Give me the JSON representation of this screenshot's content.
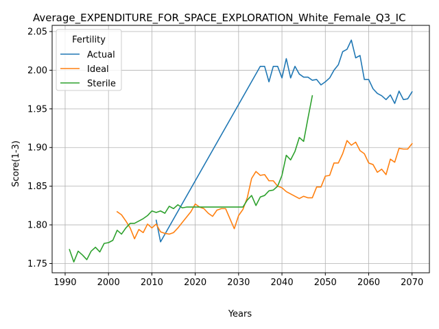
{
  "chart_data": {
    "type": "line",
    "title": "Average_EXPENDITURE_FOR_SPACE_EXPLORATION_White_Female_Q3_IC",
    "xlabel": "Years",
    "ylabel": "Score(1-3)",
    "xlim": [
      1987,
      2074
    ],
    "ylim": [
      1.738,
      2.058
    ],
    "xticks": [
      1990,
      2000,
      2010,
      2020,
      2030,
      2040,
      2050,
      2060,
      2070
    ],
    "yticks": [
      1.75,
      1.8,
      1.85,
      1.9,
      1.95,
      2.0,
      2.05
    ],
    "xtick_labels": [
      "1990",
      "2000",
      "2010",
      "2020",
      "2030",
      "2040",
      "2050",
      "2060",
      "2070"
    ],
    "ytick_labels": [
      "1.75",
      "1.80",
      "1.85",
      "1.90",
      "1.95",
      "2.00",
      "2.05"
    ],
    "grid": true,
    "legend": {
      "title": "Fertility",
      "placement": "upper-left"
    },
    "series": [
      {
        "name": "Actual",
        "color": "#1f77b4",
        "points": [
          [
            2011,
            1.806
          ],
          [
            2012,
            1.778
          ],
          [
            2035,
            2.005
          ],
          [
            2036,
            2.005
          ],
          [
            2037,
            1.985
          ],
          [
            2038,
            2.005
          ],
          [
            2039,
            2.005
          ],
          [
            2040,
            1.99
          ],
          [
            2041,
            2.015
          ],
          [
            2042,
            1.99
          ],
          [
            2043,
            2.005
          ],
          [
            2044,
            1.995
          ],
          [
            2045,
            1.991
          ],
          [
            2046,
            1.991
          ],
          [
            2047,
            1.987
          ],
          [
            2048,
            1.988
          ],
          [
            2049,
            1.981
          ],
          [
            2050,
            1.985
          ],
          [
            2051,
            1.99
          ],
          [
            2052,
            2.0
          ],
          [
            2053,
            2.007
          ],
          [
            2054,
            2.024
          ],
          [
            2055,
            2.027
          ],
          [
            2056,
            2.039
          ],
          [
            2057,
            2.016
          ],
          [
            2058,
            2.019
          ],
          [
            2059,
            1.988
          ],
          [
            2060,
            1.988
          ],
          [
            2061,
            1.976
          ],
          [
            2062,
            1.97
          ],
          [
            2063,
            1.967
          ],
          [
            2064,
            1.962
          ],
          [
            2065,
            1.968
          ],
          [
            2066,
            1.957
          ],
          [
            2067,
            1.973
          ],
          [
            2068,
            1.962
          ],
          [
            2069,
            1.963
          ],
          [
            2070,
            1.972
          ]
        ]
      },
      {
        "name": "Ideal",
        "color": "#ff7f0e",
        "points": [
          [
            2002,
            1.817
          ],
          [
            2003,
            1.813
          ],
          [
            2004,
            1.805
          ],
          [
            2005,
            1.796
          ],
          [
            2006,
            1.782
          ],
          [
            2007,
            1.794
          ],
          [
            2008,
            1.79
          ],
          [
            2009,
            1.801
          ],
          [
            2010,
            1.796
          ],
          [
            2011,
            1.801
          ],
          [
            2012,
            1.791
          ],
          [
            2013,
            1.789
          ],
          [
            2014,
            1.788
          ],
          [
            2015,
            1.79
          ],
          [
            2016,
            1.796
          ],
          [
            2017,
            1.803
          ],
          [
            2018,
            1.81
          ],
          [
            2019,
            1.817
          ],
          [
            2020,
            1.827
          ],
          [
            2021,
            1.823
          ],
          [
            2022,
            1.821
          ],
          [
            2023,
            1.815
          ],
          [
            2024,
            1.811
          ],
          [
            2025,
            1.819
          ],
          [
            2026,
            1.821
          ],
          [
            2027,
            1.821
          ],
          [
            2028,
            1.808
          ],
          [
            2029,
            1.795
          ],
          [
            2030,
            1.812
          ],
          [
            2031,
            1.82
          ],
          [
            2032,
            1.835
          ],
          [
            2033,
            1.86
          ],
          [
            2034,
            1.869
          ],
          [
            2035,
            1.864
          ],
          [
            2036,
            1.865
          ],
          [
            2037,
            1.857
          ],
          [
            2038,
            1.857
          ],
          [
            2039,
            1.85
          ],
          [
            2040,
            1.848
          ],
          [
            2041,
            1.843
          ],
          [
            2042,
            1.84
          ],
          [
            2043,
            1.837
          ],
          [
            2044,
            1.834
          ],
          [
            2045,
            1.837
          ],
          [
            2046,
            1.835
          ],
          [
            2047,
            1.835
          ],
          [
            2048,
            1.849
          ],
          [
            2049,
            1.849
          ],
          [
            2050,
            1.863
          ],
          [
            2051,
            1.864
          ],
          [
            2052,
            1.88
          ],
          [
            2053,
            1.88
          ],
          [
            2054,
            1.892
          ],
          [
            2055,
            1.909
          ],
          [
            2056,
            1.903
          ],
          [
            2057,
            1.907
          ],
          [
            2058,
            1.896
          ],
          [
            2059,
            1.892
          ],
          [
            2060,
            1.88
          ],
          [
            2061,
            1.878
          ],
          [
            2062,
            1.868
          ],
          [
            2063,
            1.872
          ],
          [
            2064,
            1.865
          ],
          [
            2065,
            1.885
          ],
          [
            2066,
            1.881
          ],
          [
            2067,
            1.899
          ],
          [
            2068,
            1.898
          ],
          [
            2069,
            1.898
          ],
          [
            2070,
            1.905
          ]
        ]
      },
      {
        "name": "Sterile",
        "color": "#2ca02c",
        "points": [
          [
            1991,
            1.768
          ],
          [
            1992,
            1.752
          ],
          [
            1993,
            1.766
          ],
          [
            1994,
            1.761
          ],
          [
            1995,
            1.755
          ],
          [
            1996,
            1.766
          ],
          [
            1997,
            1.771
          ],
          [
            1998,
            1.765
          ],
          [
            1999,
            1.776
          ],
          [
            2000,
            1.777
          ],
          [
            2001,
            1.78
          ],
          [
            2002,
            1.793
          ],
          [
            2003,
            1.788
          ],
          [
            2004,
            1.796
          ],
          [
            2005,
            1.802
          ],
          [
            2006,
            1.802
          ],
          [
            2007,
            1.805
          ],
          [
            2008,
            1.808
          ],
          [
            2009,
            1.812
          ],
          [
            2010,
            1.818
          ],
          [
            2011,
            1.816
          ],
          [
            2012,
            1.818
          ],
          [
            2013,
            1.815
          ],
          [
            2014,
            1.824
          ],
          [
            2015,
            1.821
          ],
          [
            2016,
            1.826
          ],
          [
            2017,
            1.822
          ],
          [
            2018,
            1.823
          ],
          [
            2030,
            1.823
          ],
          [
            2031,
            1.823
          ],
          [
            2032,
            1.832
          ],
          [
            2033,
            1.838
          ],
          [
            2034,
            1.825
          ],
          [
            2035,
            1.836
          ],
          [
            2036,
            1.838
          ],
          [
            2037,
            1.844
          ],
          [
            2038,
            1.845
          ],
          [
            2039,
            1.85
          ],
          [
            2040,
            1.864
          ],
          [
            2041,
            1.89
          ],
          [
            2042,
            1.884
          ],
          [
            2043,
            1.895
          ],
          [
            2044,
            1.913
          ],
          [
            2045,
            1.908
          ],
          [
            2046,
            1.938
          ],
          [
            2047,
            1.967
          ]
        ]
      }
    ]
  }
}
